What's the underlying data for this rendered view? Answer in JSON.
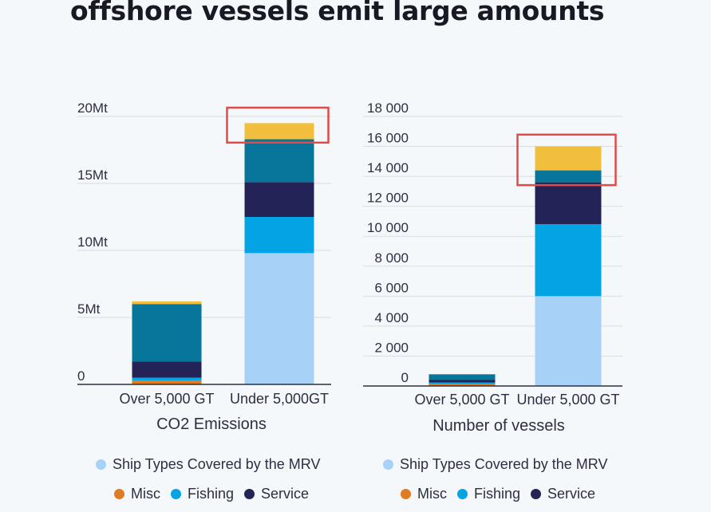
{
  "headline": "offshore vessels emit large amounts",
  "colors": {
    "mrv": "#a7d1f7",
    "fishing": "#04a3e3",
    "service": "#242358",
    "teal": "#08759a",
    "misc": "#e07b21",
    "yellow": "#f1be3d",
    "highlight": "#e24a4a",
    "gridline": "#d7dde4",
    "axis": "#2b3040"
  },
  "legend": {
    "row1": [
      {
        "label": "Ship Types Covered by the MRV",
        "color": "#a7d1f7",
        "icon": "circle-dot-icon"
      }
    ],
    "row2": [
      {
        "label": "Misc",
        "color": "#e07b21",
        "icon": "circle-dot-icon"
      },
      {
        "label": "Fishing",
        "color": "#04a3e3",
        "icon": "circle-dot-icon"
      },
      {
        "label": "Service",
        "color": "#242358",
        "icon": "circle-dot-icon"
      }
    ]
  },
  "chart_data": [
    {
      "type": "bar",
      "stacked": true,
      "xlabel": "CO2 Emissions",
      "ylabel": "",
      "ylim": [
        0,
        20
      ],
      "yticks": [
        0,
        5,
        10,
        15,
        20
      ],
      "yticklabels": [
        "0",
        "5Mt",
        "10Mt",
        "15Mt",
        "20Mt"
      ],
      "grid": true,
      "categories": [
        "Over 5,000 GT",
        "Under 5,000GT"
      ],
      "series": [
        {
          "colorKey": "mrv",
          "values": [
            0,
            9.8
          ]
        },
        {
          "colorKey": "misc",
          "values": [
            0.3,
            0
          ]
        },
        {
          "colorKey": "fishing",
          "values": [
            0.2,
            2.7
          ]
        },
        {
          "colorKey": "service",
          "values": [
            1.2,
            2.6
          ]
        },
        {
          "colorKey": "teal",
          "values": [
            4.3,
            3.2
          ]
        },
        {
          "colorKey": "yellow",
          "values": [
            0.2,
            1.2
          ]
        }
      ],
      "highlight": {
        "category": "Under 5,000GT",
        "from": 18.7,
        "to": 20.0
      }
    },
    {
      "type": "bar",
      "stacked": true,
      "xlabel": "Number of vessels",
      "ylabel": "",
      "ylim": [
        0,
        18000
      ],
      "yticks": [
        0,
        2000,
        4000,
        6000,
        8000,
        10000,
        12000,
        14000,
        16000,
        18000
      ],
      "yticklabels": [
        "0",
        "2 000",
        "4 000",
        "6 000",
        "8 000",
        "10 000",
        "12 000",
        "14 000",
        "16 000",
        "18 000"
      ],
      "grid": true,
      "categories": [
        "Over 5,000 GT",
        "Under 5,000 GT"
      ],
      "series": [
        {
          "colorKey": "mrv",
          "values": [
            0,
            6000
          ]
        },
        {
          "colorKey": "misc",
          "values": [
            120,
            0
          ]
        },
        {
          "colorKey": "fishing",
          "values": [
            120,
            4800
          ]
        },
        {
          "colorKey": "service",
          "values": [
            160,
            2800
          ]
        },
        {
          "colorKey": "teal",
          "values": [
            380,
            800
          ]
        },
        {
          "colorKey": "yellow",
          "values": [
            20,
            1600
          ]
        }
      ],
      "highlight": {
        "category": "Under 5,000 GT",
        "from": 14000,
        "to": 16200
      }
    }
  ]
}
